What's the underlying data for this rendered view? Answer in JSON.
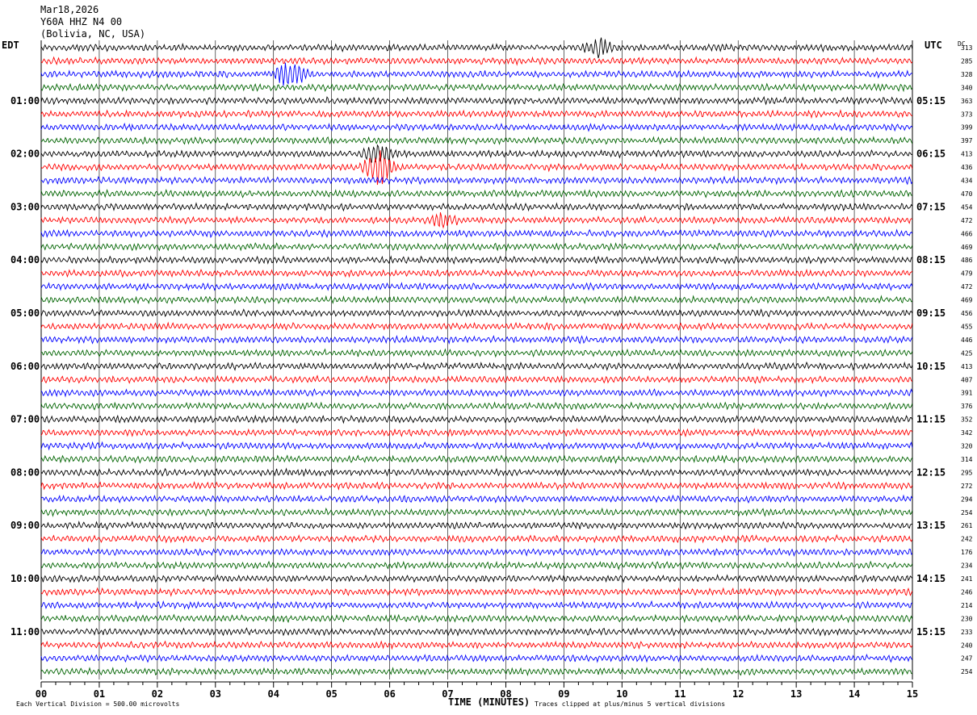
{
  "header": {
    "date": "Mar18,2026",
    "station": "Y60A HHZ N4 00",
    "location": "(Bolivia, NC, USA)"
  },
  "left_zone": "EDT",
  "right_zone": "UTC",
  "dc_label": "DC",
  "footer": {
    "vertical_division": "Each Vertical Division =  500.00 microvolts",
    "xlabel": "TIME (MINUTES)",
    "clipping": "Traces clipped at plus/minus 5 vertical divisions"
  },
  "colors": {
    "trace_cycle": [
      "#000000",
      "#ff0000",
      "#0000ff",
      "#006400"
    ],
    "grid": "#000000",
    "background": "#ffffff"
  },
  "chart_data": {
    "type": "line",
    "description_kind": "helicorder",
    "x_ticks": [
      "00",
      "01",
      "02",
      "03",
      "04",
      "05",
      "06",
      "07",
      "08",
      "09",
      "10",
      "11",
      "12",
      "13",
      "14",
      "15"
    ],
    "xlim": [
      0,
      15
    ],
    "left_hour_labels": [
      "01:00",
      "02:00",
      "03:00",
      "04:00",
      "05:00",
      "06:00",
      "07:00",
      "08:00",
      "09:00",
      "10:00",
      "11:00"
    ],
    "right_hour_labels": [
      "05:15",
      "06:15",
      "07:15",
      "08:15",
      "09:15",
      "10:15",
      "11:15",
      "12:15",
      "13:15",
      "14:15",
      "15:15"
    ],
    "dc_values": [
      313,
      285,
      328,
      340,
      363,
      373,
      399,
      397,
      413,
      436,
      434,
      470,
      454,
      472,
      466,
      469,
      486,
      479,
      472,
      469,
      456,
      455,
      446,
      425,
      413,
      407,
      391,
      376,
      352,
      342,
      320,
      314,
      295,
      272,
      294,
      254,
      261,
      242,
      176,
      234,
      241,
      246,
      214,
      230,
      233,
      240,
      247,
      254
    ],
    "events": [
      {
        "trace": 2,
        "minute": 4.3,
        "amplitude": 3.0
      },
      {
        "trace": 9,
        "minute": 5.8,
        "amplitude": 4.0
      },
      {
        "trace": 8,
        "minute": 5.8,
        "amplitude": 2.5
      },
      {
        "trace": 0,
        "minute": 9.6,
        "amplitude": 1.8
      },
      {
        "trace": 13,
        "minute": 6.9,
        "amplitude": 1.5
      }
    ]
  }
}
